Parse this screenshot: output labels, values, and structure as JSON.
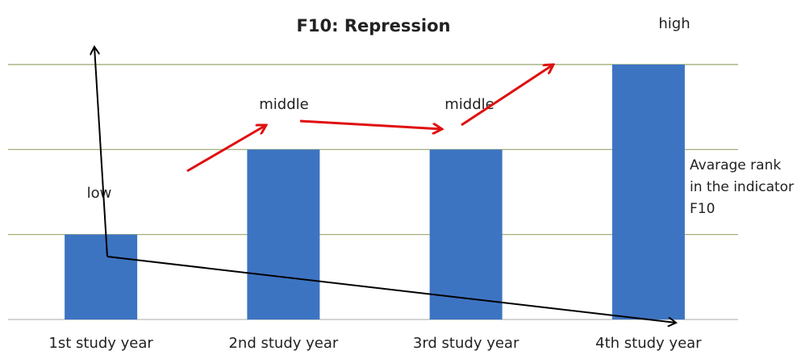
{
  "chart_data": {
    "type": "bar",
    "title": "F10: Repression",
    "categories": [
      "1st study year",
      "2nd  study year",
      "3rd study year",
      "4th study year"
    ],
    "series": [
      {
        "name": "Avarage rank in the indicator F10",
        "color": "#3d74c2",
        "values": [
          1,
          2,
          2,
          3
        ]
      }
    ],
    "annotations": [
      "low",
      "middle",
      "middle",
      "high"
    ],
    "ylim": [
      0,
      3
    ],
    "yticks": [
      0,
      1,
      2,
      3
    ],
    "grid": true,
    "legend": "right"
  }
}
